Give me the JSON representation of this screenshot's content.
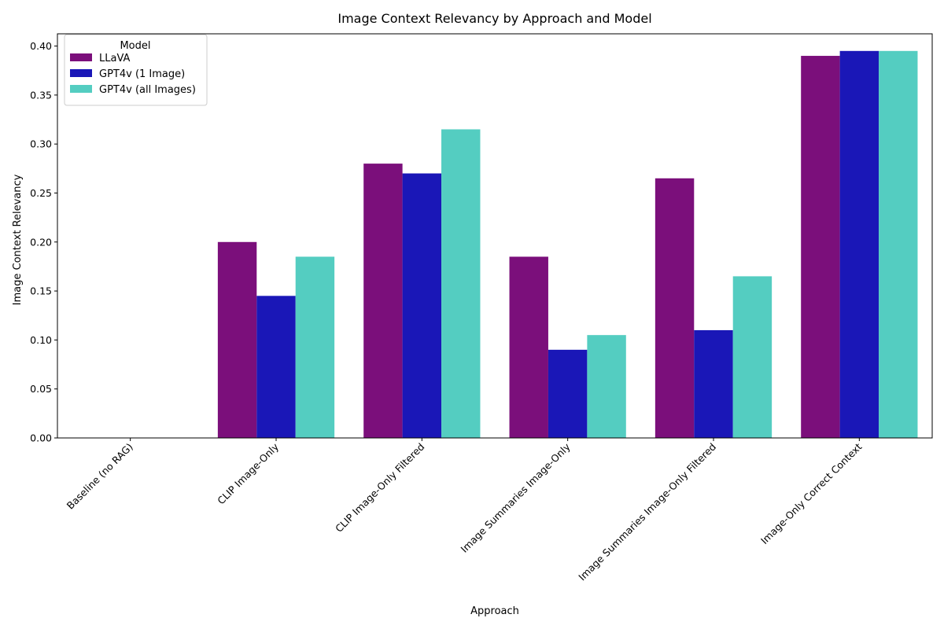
{
  "chart_data": {
    "type": "bar",
    "title": "Image Context Relevancy by Approach and Model",
    "xlabel": "Approach",
    "ylabel": "Image Context Relevancy",
    "categories": [
      "Baseline (no RAG)",
      "CLIP Image-Only",
      "CLIP Image-Only Filtered",
      "Image Summaries Image-Only",
      "Image Summaries Image-Only Filtered",
      "Image-Only Correct Context"
    ],
    "series": [
      {
        "name": "LLaVA",
        "color": "#7b0f7b",
        "values": [
          0,
          0.2,
          0.28,
          0.185,
          0.265,
          0.39
        ]
      },
      {
        "name": "GPT4v (1 Image)",
        "color": "#1a17b7",
        "values": [
          0,
          0.145,
          0.27,
          0.09,
          0.11,
          0.395
        ]
      },
      {
        "name": "GPT4v (all Images)",
        "color": "#54cdc1",
        "values": [
          0,
          0.185,
          0.315,
          0.105,
          0.165,
          0.395
        ]
      }
    ],
    "ylim": [
      0,
      0.4125
    ],
    "yticks": [
      "0.00",
      "0.05",
      "0.10",
      "0.15",
      "0.20",
      "0.25",
      "0.30",
      "0.35",
      "0.40"
    ],
    "legend_title": "Model",
    "legend_position": "top-left",
    "grid": false
  }
}
